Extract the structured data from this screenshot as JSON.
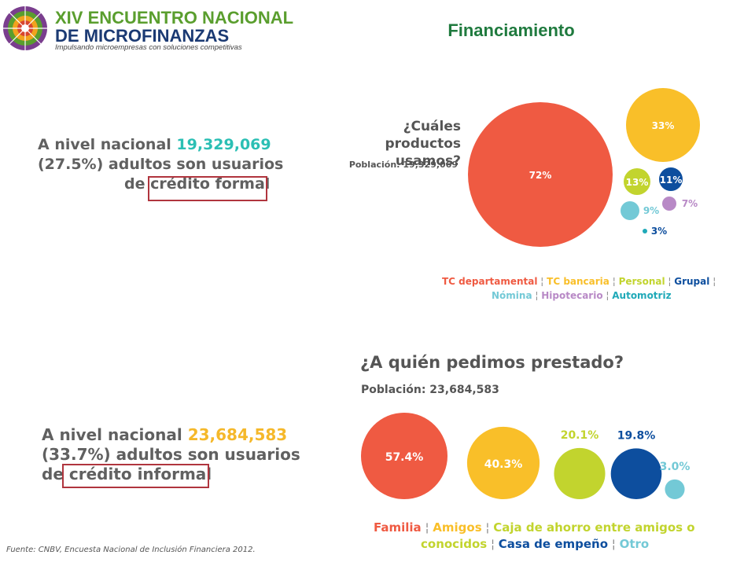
{
  "header": {
    "logo_line1": "XIV ENCUENTRO NACIONAL",
    "logo_line2_prefix": "DE ",
    "logo_line2_highlight": "MICROFINANZAS",
    "logo_tagline": "Impulsando microempresas con soluciones competitivas",
    "slide_title": "Financiamiento"
  },
  "formal": {
    "line1_prefix": "A nivel nacional ",
    "line1_value": "19,329,069",
    "line2": "(27.5%) adultos son usuarios",
    "line3_prefix": "de ",
    "line3_boxed": "crédito formal"
  },
  "informal": {
    "line1_prefix": "A nivel nacional ",
    "line1_value": "23,684,583",
    "line2": "(33.7%) adultos son usuarios",
    "line3_prefix": "de ",
    "line3_boxed": "crédito informal"
  },
  "source": "Fuente: CNBV, Encuesta Nacional de Inclusión Financiera 2012.",
  "colors": {
    "red": "#ef5a42",
    "gold": "#f9bf29",
    "lime": "#c2d42e",
    "navy": "#0d4e9e",
    "purple": "#b889c6",
    "lightblue": "#73c9d6",
    "teal": "#1fa9b8",
    "green_title": "#1f7a3e",
    "highlight_box": "#b0353e"
  },
  "chart_data": [
    {
      "type": "bubble",
      "title_line1": "¿Cuáles productos",
      "title_line2": "usamos?",
      "subtitle": "Población: 19,329,069",
      "categories": [
        "TC departamental",
        "TC bancaria",
        "Personal",
        "Grupal",
        "Nómina",
        "Hipotecario",
        "Automotriz"
      ],
      "values": [
        72,
        33,
        13,
        11,
        9,
        7,
        3
      ],
      "value_labels": [
        "72%",
        "33%",
        "13%",
        "11%",
        "9%",
        "7%",
        "3%"
      ],
      "colors": [
        "#ef5a42",
        "#f9bf29",
        "#c2d42e",
        "#0d4e9e",
        "#73c9d6",
        "#b889c6",
        "#1fa9b8"
      ],
      "label_colors": [
        "#ffffff",
        "#ffffff",
        "#ffffff",
        "#ffffff",
        "#73c9d6",
        "#b889c6",
        "#0d4e9e"
      ],
      "legend_line1": [
        "TC departamental",
        "TC bancaria",
        "Personal",
        "Grupal"
      ],
      "legend_line2": [
        "Nómina",
        "Hipotecario",
        "Automotriz"
      ],
      "legend_separator": "¦"
    },
    {
      "type": "bubble",
      "title": "¿A quién pedimos prestado?",
      "subtitle": "Población: 23,684,583",
      "categories": [
        "Familia",
        "Amigos",
        "Caja de ahorro entre amigos o conocidos",
        "Casa de empeño",
        "Otro"
      ],
      "values": [
        57.4,
        40.3,
        20.1,
        19.8,
        3.0
      ],
      "value_labels": [
        "57.4%",
        "40.3%",
        "20.1%",
        "19.8%",
        "3.0%"
      ],
      "colors": [
        "#ef5a42",
        "#f9bf29",
        "#c2d42e",
        "#0d4e9e",
        "#73c9d6"
      ],
      "label_colors": [
        "#ffffff",
        "#ffffff",
        "#c2d42e",
        "#0d4e9e",
        "#73c9d6"
      ],
      "legend_line1": [
        "Familia",
        "Amigos",
        "Caja de ahorro entre amigos o"
      ],
      "legend_line2_continuation": "conocidos",
      "legend_line2": [
        "Casa de empeño",
        "Otro"
      ],
      "legend_separator": "¦"
    }
  ]
}
